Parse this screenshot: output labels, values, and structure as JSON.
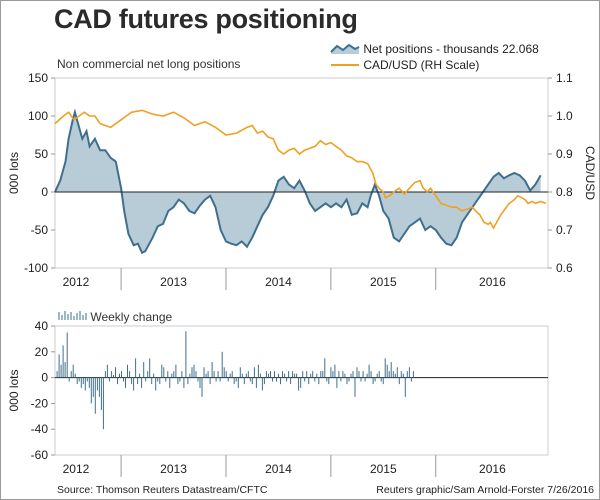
{
  "title": "CAD futures positioning",
  "footer": {
    "source": "Source: Thomson Reuters Datastream/CFTC",
    "credit": "Reuters graphic/Sam Arnold-Forster 7/26/2016"
  },
  "colors": {
    "net_fill": "#b8ccd8",
    "net_line": "#3e6f8e",
    "cad_line": "#f0a020",
    "bar": "#3e6f8e"
  },
  "chart_data": [
    {
      "type": "area",
      "title": "Non commercial net long positions",
      "ylabel_left": "000 lots",
      "ylabel_right": "CAD/USD",
      "ylim": [
        -100,
        150
      ],
      "y2lim": [
        0.6,
        1.1
      ],
      "yticks": [
        "150",
        "100",
        "50",
        "0",
        "-50",
        "-100"
      ],
      "y2ticks": [
        "1.1",
        "1.0",
        "0.9",
        "0.8",
        "0.7",
        "0.6"
      ],
      "xlabels": [
        "2012",
        "2013",
        "2014",
        "2015",
        "2016"
      ],
      "xlim": [
        2011.87,
        2016.57
      ],
      "legend": [
        "Net positions - thousands 22.068",
        "CAD/USD (RH Scale)"
      ],
      "series": [
        {
          "name": "Net positions - thousands 22.068",
          "points": [
            [
              2011.87,
              0
            ],
            [
              2011.92,
              15
            ],
            [
              2011.97,
              40
            ],
            [
              2012.0,
              70
            ],
            [
              2012.04,
              95
            ],
            [
              2012.06,
              105
            ],
            [
              2012.1,
              85
            ],
            [
              2012.13,
              70
            ],
            [
              2012.17,
              80
            ],
            [
              2012.2,
              60
            ],
            [
              2012.25,
              70
            ],
            [
              2012.3,
              55
            ],
            [
              2012.35,
              55
            ],
            [
              2012.4,
              45
            ],
            [
              2012.45,
              40
            ],
            [
              2012.5,
              5
            ],
            [
              2012.53,
              -25
            ],
            [
              2012.57,
              -55
            ],
            [
              2012.62,
              -70
            ],
            [
              2012.66,
              -68
            ],
            [
              2012.7,
              -80
            ],
            [
              2012.73,
              -78
            ],
            [
              2012.8,
              -60
            ],
            [
              2012.85,
              -45
            ],
            [
              2012.9,
              -42
            ],
            [
              2012.95,
              -25
            ],
            [
              2013.0,
              -20
            ],
            [
              2013.05,
              -10
            ],
            [
              2013.1,
              -15
            ],
            [
              2013.15,
              -25
            ],
            [
              2013.2,
              -28
            ],
            [
              2013.25,
              -18
            ],
            [
              2013.3,
              -10
            ],
            [
              2013.35,
              -5
            ],
            [
              2013.4,
              -20
            ],
            [
              2013.45,
              -50
            ],
            [
              2013.5,
              -65
            ],
            [
              2013.55,
              -68
            ],
            [
              2013.6,
              -70
            ],
            [
              2013.65,
              -65
            ],
            [
              2013.7,
              -72
            ],
            [
              2013.75,
              -60
            ],
            [
              2013.8,
              -45
            ],
            [
              2013.85,
              -30
            ],
            [
              2013.9,
              -20
            ],
            [
              2013.95,
              -5
            ],
            [
              2014.0,
              15
            ],
            [
              2014.05,
              20
            ],
            [
              2014.1,
              10
            ],
            [
              2014.15,
              5
            ],
            [
              2014.2,
              15
            ],
            [
              2014.25,
              2
            ],
            [
              2014.3,
              -15
            ],
            [
              2014.35,
              -25
            ],
            [
              2014.4,
              -20
            ],
            [
              2014.45,
              -15
            ],
            [
              2014.5,
              -20
            ],
            [
              2014.55,
              -15
            ],
            [
              2014.6,
              -20
            ],
            [
              2014.65,
              -10
            ],
            [
              2014.7,
              -30
            ],
            [
              2014.75,
              -28
            ],
            [
              2014.8,
              -15
            ],
            [
              2014.85,
              -20
            ],
            [
              2014.88,
              -5
            ],
            [
              2014.92,
              10
            ],
            [
              2014.96,
              -5
            ],
            [
              2015.0,
              -25
            ],
            [
              2015.05,
              -35
            ],
            [
              2015.1,
              -60
            ],
            [
              2015.15,
              -65
            ],
            [
              2015.2,
              -55
            ],
            [
              2015.25,
              -45
            ],
            [
              2015.3,
              -40
            ],
            [
              2015.35,
              -35
            ],
            [
              2015.4,
              -50
            ],
            [
              2015.45,
              -45
            ],
            [
              2015.5,
              -50
            ],
            [
              2015.55,
              -60
            ],
            [
              2015.6,
              -68
            ],
            [
              2015.65,
              -70
            ],
            [
              2015.7,
              -60
            ],
            [
              2015.75,
              -40
            ],
            [
              2015.8,
              -30
            ],
            [
              2015.85,
              -20
            ],
            [
              2015.9,
              -10
            ],
            [
              2015.95,
              0
            ],
            [
              2016.0,
              10
            ],
            [
              2016.05,
              20
            ],
            [
              2016.1,
              25
            ],
            [
              2016.15,
              18
            ],
            [
              2016.2,
              22
            ],
            [
              2016.25,
              25
            ],
            [
              2016.3,
              22
            ],
            [
              2016.35,
              15
            ],
            [
              2016.4,
              2
            ],
            [
              2016.45,
              10
            ],
            [
              2016.5,
              22
            ]
          ]
        },
        {
          "name": "CAD/USD (RH Scale)",
          "axis": "right",
          "points": [
            [
              2011.87,
              0.98
            ],
            [
              2011.95,
              1.0
            ],
            [
              2012.0,
              1.01
            ],
            [
              2012.05,
              0.99
            ],
            [
              2012.1,
              1.0
            ],
            [
              2012.15,
              1.01
            ],
            [
              2012.2,
              1.0
            ],
            [
              2012.25,
              1.0
            ],
            [
              2012.3,
              0.98
            ],
            [
              2012.4,
              0.97
            ],
            [
              2012.5,
              0.99
            ],
            [
              2012.6,
              1.01
            ],
            [
              2012.7,
              1.015
            ],
            [
              2012.8,
              1.005
            ],
            [
              2012.9,
              1.0
            ],
            [
              2013.0,
              1.01
            ],
            [
              2013.1,
              0.995
            ],
            [
              2013.2,
              0.975
            ],
            [
              2013.3,
              0.985
            ],
            [
              2013.4,
              0.97
            ],
            [
              2013.5,
              0.95
            ],
            [
              2013.6,
              0.955
            ],
            [
              2013.7,
              0.97
            ],
            [
              2013.75,
              0.975
            ],
            [
              2013.8,
              0.955
            ],
            [
              2013.85,
              0.96
            ],
            [
              2013.9,
              0.945
            ],
            [
              2013.95,
              0.94
            ],
            [
              2014.0,
              0.91
            ],
            [
              2014.05,
              0.9
            ],
            [
              2014.1,
              0.91
            ],
            [
              2014.15,
              0.915
            ],
            [
              2014.2,
              0.9
            ],
            [
              2014.25,
              0.91
            ],
            [
              2014.3,
              0.915
            ],
            [
              2014.35,
              0.92
            ],
            [
              2014.4,
              0.935
            ],
            [
              2014.45,
              0.925
            ],
            [
              2014.5,
              0.93
            ],
            [
              2014.55,
              0.92
            ],
            [
              2014.6,
              0.91
            ],
            [
              2014.65,
              0.895
            ],
            [
              2014.7,
              0.89
            ],
            [
              2014.75,
              0.88
            ],
            [
              2014.8,
              0.88
            ],
            [
              2014.85,
              0.875
            ],
            [
              2014.88,
              0.86
            ],
            [
              2014.9,
              0.85
            ],
            [
              2014.93,
              0.82
            ],
            [
              2014.96,
              0.81
            ],
            [
              2015.0,
              0.8
            ],
            [
              2015.02,
              0.785
            ],
            [
              2015.06,
              0.79
            ],
            [
              2015.1,
              0.8
            ],
            [
              2015.15,
              0.81
            ],
            [
              2015.2,
              0.795
            ],
            [
              2015.25,
              0.81
            ],
            [
              2015.3,
              0.825
            ],
            [
              2015.35,
              0.83
            ],
            [
              2015.38,
              0.81
            ],
            [
              2015.42,
              0.8
            ],
            [
              2015.45,
              0.81
            ],
            [
              2015.5,
              0.79
            ],
            [
              2015.55,
              0.77
            ],
            [
              2015.6,
              0.765
            ],
            [
              2015.65,
              0.76
            ],
            [
              2015.7,
              0.76
            ],
            [
              2015.75,
              0.75
            ],
            [
              2015.8,
              0.755
            ],
            [
              2015.85,
              0.76
            ],
            [
              2015.88,
              0.75
            ],
            [
              2015.92,
              0.74
            ],
            [
              2015.96,
              0.72
            ],
            [
              2016.0,
              0.715
            ],
            [
              2016.02,
              0.72
            ],
            [
              2016.05,
              0.705
            ],
            [
              2016.08,
              0.72
            ],
            [
              2016.12,
              0.74
            ],
            [
              2016.16,
              0.755
            ],
            [
              2016.2,
              0.77
            ],
            [
              2016.25,
              0.78
            ],
            [
              2016.28,
              0.79
            ],
            [
              2016.32,
              0.785
            ],
            [
              2016.35,
              0.78
            ],
            [
              2016.38,
              0.77
            ],
            [
              2016.42,
              0.775
            ],
            [
              2016.45,
              0.77
            ],
            [
              2016.5,
              0.775
            ],
            [
              2016.55,
              0.77
            ]
          ]
        }
      ]
    },
    {
      "type": "bar",
      "title": "Weekly change",
      "ylabel": "000 lots",
      "ylim": [
        -60,
        40
      ],
      "yticks": [
        "40",
        "20",
        "0",
        "-20",
        "-40",
        "-60"
      ],
      "xlabels": [
        "2012",
        "2013",
        "2014",
        "2015",
        "2016"
      ],
      "xlim": [
        2011.87,
        2016.57
      ],
      "series": [
        {
          "name": "Weekly change",
          "start": 2011.89,
          "step": 0.01919,
          "values": [
            5,
            18,
            10,
            25,
            12,
            35,
            -3,
            5,
            10,
            3,
            -5,
            -3,
            -8,
            -5,
            -10,
            -3,
            -8,
            -20,
            -15,
            -28,
            -10,
            -15,
            -25,
            -40,
            5,
            10,
            -3,
            5,
            2,
            8,
            -5,
            3,
            5,
            -3,
            -8,
            10,
            5,
            -5,
            -10,
            15,
            -5,
            3,
            -8,
            12,
            -3,
            5,
            15,
            -5,
            3,
            -10,
            -3,
            -5,
            10,
            8,
            -3,
            5,
            -8,
            3,
            5,
            10,
            -5,
            -3,
            5,
            -8,
            36,
            -5,
            3,
            8,
            10,
            5,
            -3,
            -8,
            -15,
            8,
            3,
            5,
            -5,
            12,
            5,
            -3,
            5,
            -3,
            20,
            8,
            5,
            -3,
            3,
            5,
            -5,
            -3,
            -8,
            8,
            3,
            -5,
            3,
            5,
            -3,
            -5,
            8,
            -8,
            10,
            3,
            -10,
            -5,
            5,
            3,
            5,
            -3,
            5,
            -3,
            3,
            -5,
            5,
            3,
            -3,
            5,
            -5,
            5,
            3,
            3,
            -10,
            -8,
            5,
            -3,
            5,
            -5,
            3,
            5,
            -3,
            3,
            -5,
            5,
            5,
            15,
            -3,
            -5,
            8,
            5,
            10,
            -8,
            5,
            -3,
            5,
            3,
            -5,
            -3,
            3,
            5,
            -15,
            8,
            5,
            -3,
            5,
            -3,
            3,
            10,
            5,
            -5,
            -3,
            3,
            5,
            -3,
            -5,
            15,
            10,
            5,
            12,
            5,
            3,
            8,
            -5,
            5,
            3,
            -15,
            5,
            8,
            -3,
            5
          ]
        }
      ]
    }
  ]
}
